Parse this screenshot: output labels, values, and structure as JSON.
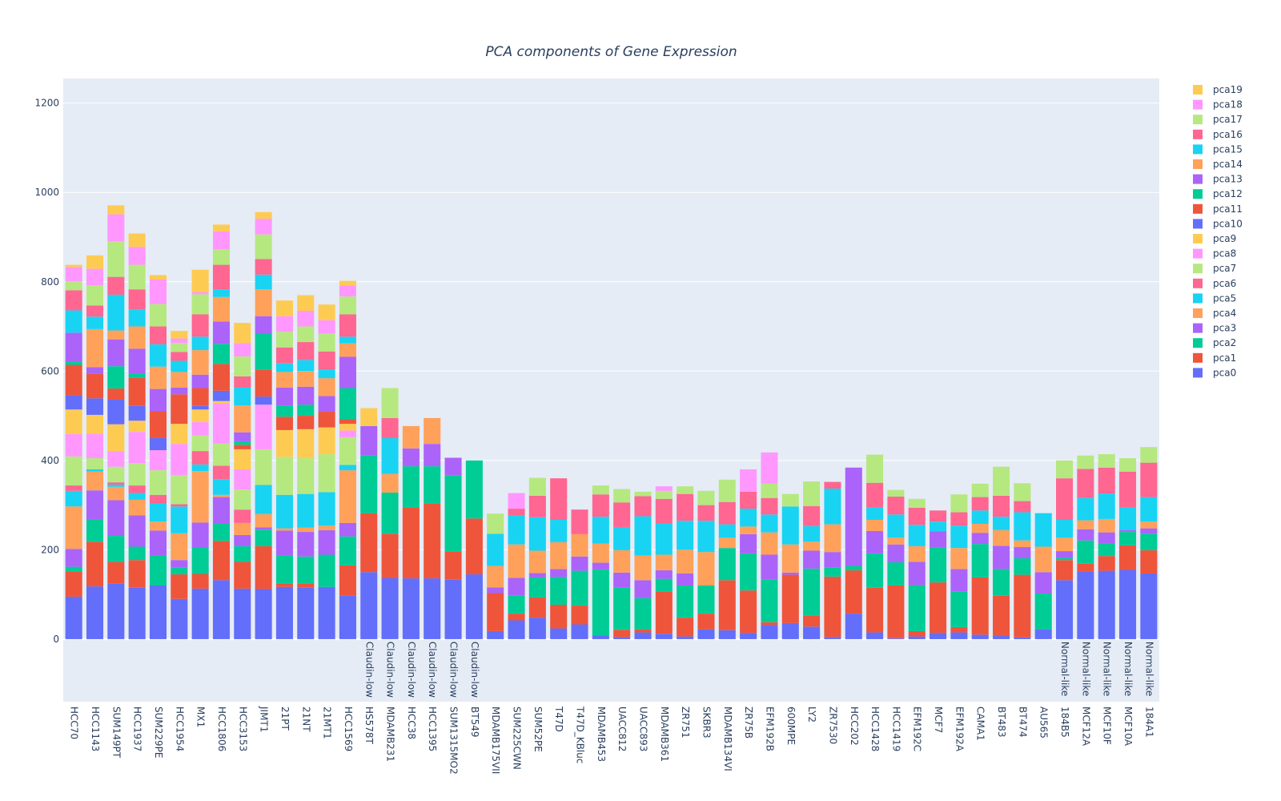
{
  "colors": [
    "#636efa",
    "#EF553B",
    "#00cc96",
    "#ab63fa",
    "#FFA15A",
    "#19d3f3",
    "#FF6692",
    "#B6E880",
    "#FF97FF",
    "#FECB52"
  ],
  "chart_data": {
    "type": "bar",
    "barmode": "stack",
    "title": "PCA components of Gene Expression",
    "xlabel": "",
    "ylabel": "",
    "ylim": [
      -140,
      1255
    ],
    "yticks": [
      0,
      200,
      400,
      600,
      800,
      1000,
      1200
    ],
    "grid": true,
    "legend_position": "right",
    "categories": [
      "HCC70",
      "HCC1143",
      "SUM149PT",
      "HCC1937",
      "SUM229PE",
      "HCC1954",
      "MX1",
      "HCC1806",
      "HCC3153",
      "JIMT1",
      "21PT",
      "21NT",
      "21MT1",
      "HCC1569",
      "HS578T",
      "MDAMB231",
      "HCC38",
      "HCC1395",
      "SUM1315MO2",
      "BT549",
      "MDAMB175VII",
      "SUM225CWN",
      "SUM52PE",
      "T47D",
      "T47D_KBluc",
      "MDAMB453",
      "UACC812",
      "UACC893",
      "MDAMB361",
      "ZR751",
      "SKBR3",
      "MDAMB134VI",
      "ZR75B",
      "EFM192B",
      "600MPE",
      "LY2",
      "ZR7530",
      "HCC202",
      "HCC1428",
      "HCC1419",
      "EFM192C",
      "MCF7",
      "EFM192A",
      "CAMA1",
      "BT483",
      "BT474",
      "AU565",
      "184B5",
      "MCF12A",
      "MCF10F",
      "MCF10A",
      "184A1"
    ],
    "subtype_labels": [
      "",
      "",
      "",
      "",
      "",
      "",
      "",
      "",
      "",
      "",
      "",
      "",
      "",
      "",
      "Claudin-low",
      "Claudin-low",
      "Claudin-low",
      "Claudin-low",
      "Claudin-low",
      "Claudin-low",
      "",
      "",
      "",
      "",
      "",
      "",
      "",
      "",
      "",
      "",
      "",
      "",
      "",
      "",
      "",
      "",
      "",
      "",
      "",
      "",
      "",
      "",
      "",
      "",
      "",
      "",
      "",
      "Normal-like",
      "Normal-like",
      "Normal-like",
      "Normal-like",
      "Normal-like"
    ],
    "legend_order": [
      "pca19",
      "pca18",
      "pca17",
      "pca16",
      "pca15",
      "pca14",
      "pca13",
      "pca12",
      "pca11",
      "pca10",
      "pca9",
      "pca8",
      "pca7",
      "pca6",
      "pca5",
      "pca4",
      "pca3",
      "pca2",
      "pca1",
      "pca0"
    ],
    "series": [
      {
        "name": "pca0",
        "values": [
          95,
          118,
          125,
          115,
          120,
          90,
          113,
          132,
          113,
          112,
          117,
          115,
          117,
          98,
          150,
          137,
          136,
          136,
          133,
          145,
          18,
          42,
          48,
          24,
          33,
          8,
          5,
          15,
          12,
          6,
          22,
          20,
          14,
          32,
          36,
          28,
          5,
          57,
          15,
          2,
          6,
          14,
          15,
          10,
          7,
          4,
          22,
          132,
          152,
          153,
          155,
          147
        ]
      },
      {
        "name": "pca1",
        "values": [
          57,
          100,
          48,
          62,
          0,
          55,
          33,
          88,
          60,
          96,
          8,
          10,
          0,
          67,
          132,
          99,
          158,
          167,
          63,
          125,
          85,
          15,
          45,
          53,
          42,
          0,
          16,
          7,
          95,
          42,
          35,
          112,
          95,
          6,
          108,
          25,
          135,
          97,
          100,
          118,
          12,
          113,
          12,
          128,
          90,
          140,
          0,
          45,
          17,
          33,
          55,
          52
        ]
      },
      {
        "name": "pca2",
        "values": [
          10,
          50,
          58,
          30,
          68,
          15,
          60,
          38,
          35,
          37,
          63,
          60,
          72,
          65,
          130,
          92,
          93,
          84,
          170,
          130,
          0,
          40,
          45,
          62,
          78,
          148,
          95,
          70,
          28,
          72,
          63,
          72,
          83,
          95,
          0,
          105,
          20,
          10,
          77,
          52,
          103,
          78,
          80,
          75,
          60,
          37,
          80,
          5,
          52,
          28,
          30,
          37
        ]
      },
      {
        "name": "pca3",
        "values": [
          40,
          65,
          80,
          70,
          55,
          17,
          55,
          60,
          25,
          5,
          55,
          55,
          55,
          30,
          65,
          0,
          40,
          50,
          40,
          0,
          13,
          40,
          10,
          18,
          32,
          15,
          33,
          40,
          19,
          27,
          0,
          0,
          43,
          56,
          5,
          40,
          35,
          220,
          50,
          40,
          52,
          36,
          50,
          25,
          52,
          25,
          48,
          15,
          25,
          25,
          5,
          12
        ]
      },
      {
        "name": "pca4",
        "values": [
          95,
          42,
          30,
          35,
          20,
          60,
          115,
          5,
          27,
          30,
          5,
          10,
          10,
          118,
          0,
          42,
          50,
          58,
          0,
          0,
          48,
          75,
          50,
          60,
          50,
          43,
          50,
          55,
          35,
          53,
          75,
          23,
          17,
          50,
          63,
          20,
          62,
          0,
          25,
          15,
          35,
          0,
          47,
          20,
          35,
          15,
          57,
          30,
          20,
          30,
          0,
          15
        ]
      },
      {
        "name": "pca5",
        "values": [
          35,
          5,
          5,
          15,
          40,
          60,
          15,
          35,
          0,
          65,
          75,
          75,
          75,
          12,
          0,
          80,
          0,
          0,
          0,
          0,
          72,
          65,
          75,
          50,
          0,
          60,
          52,
          88,
          70,
          65,
          70,
          30,
          40,
          40,
          85,
          35,
          80,
          0,
          28,
          52,
          48,
          22,
          50,
          30,
          30,
          63,
          75,
          40,
          50,
          57,
          50,
          55
        ]
      },
      {
        "name": "pca6",
        "values": [
          12,
          0,
          5,
          17,
          20,
          5,
          30,
          30,
          30,
          0,
          0,
          0,
          0,
          0,
          0,
          45,
          0,
          0,
          0,
          0,
          0,
          15,
          48,
          93,
          55,
          50,
          55,
          45,
          55,
          60,
          35,
          50,
          38,
          37,
          0,
          45,
          15,
          0,
          55,
          40,
          38,
          25,
          30,
          30,
          47,
          25,
          0,
          93,
          65,
          58,
          80,
          77
        ]
      },
      {
        "name": "pca7",
        "values": [
          65,
          25,
          35,
          50,
          55,
          65,
          35,
          50,
          45,
          80,
          85,
          80,
          85,
          62,
          0,
          67,
          0,
          0,
          0,
          0,
          45,
          0,
          40,
          0,
          0,
          20,
          30,
          10,
          18,
          17,
          32,
          50,
          0,
          32,
          28,
          55,
          0,
          0,
          63,
          15,
          20,
          0,
          40,
          30,
          65,
          40,
          0,
          40,
          30,
          30,
          30,
          35
        ]
      },
      {
        "name": "pca8",
        "values": [
          50,
          55,
          35,
          70,
          45,
          70,
          30,
          90,
          45,
          100,
          0,
          0,
          0,
          15,
          0,
          0,
          0,
          0,
          0,
          0,
          0,
          35,
          0,
          0,
          0,
          0,
          0,
          0,
          10,
          0,
          0,
          0,
          50,
          70,
          0,
          0,
          0,
          0,
          0,
          0,
          0,
          0,
          0,
          0,
          0,
          0,
          0,
          0,
          0,
          0,
          0,
          0
        ]
      },
      {
        "name": "pca9",
        "values": [
          55,
          42,
          60,
          25,
          0,
          45,
          28,
          5,
          45,
          0,
          60,
          65,
          60,
          15,
          40,
          0,
          0,
          0,
          0,
          0,
          0,
          0,
          0,
          0,
          0,
          0,
          0,
          0,
          0,
          0,
          0,
          0,
          0,
          0,
          0,
          0,
          0,
          0,
          0,
          0,
          0,
          0,
          0,
          0,
          0,
          0,
          0,
          0,
          0,
          0,
          0,
          0
        ]
      },
      {
        "name": "pca10",
        "values": [
          32,
          37,
          55,
          33,
          27,
          0,
          8,
          23,
          0,
          18,
          0,
          0,
          0,
          0,
          0,
          0,
          0,
          0,
          0,
          0,
          0,
          0,
          0,
          0,
          0,
          0,
          0,
          0,
          0,
          0,
          0,
          0,
          0,
          0,
          0,
          0,
          0,
          0,
          0,
          0,
          0,
          0,
          0,
          0,
          0,
          0,
          0,
          0,
          0,
          0,
          0,
          0
        ]
      },
      {
        "name": "pca11",
        "values": [
          68,
          55,
          25,
          63,
          60,
          66,
          40,
          60,
          10,
          60,
          30,
          30,
          35,
          10,
          0,
          0,
          0,
          0,
          0,
          0,
          0,
          0,
          0,
          0,
          0,
          0,
          0,
          0,
          0,
          0,
          0,
          0,
          0,
          0,
          0,
          0,
          0,
          0,
          0,
          0,
          0,
          0,
          0,
          0,
          0,
          0,
          0,
          0,
          0,
          0,
          0,
          0
        ]
      },
      {
        "name": "pca12",
        "values": [
          7,
          0,
          50,
          10,
          0,
          0,
          0,
          45,
          8,
          80,
          25,
          25,
          0,
          70,
          0,
          0,
          0,
          0,
          0,
          0,
          0,
          0,
          0,
          0,
          0,
          0,
          0,
          0,
          0,
          0,
          0,
          0,
          0,
          0,
          0,
          0,
          0,
          0,
          0,
          0,
          0,
          0,
          0,
          0,
          0,
          0,
          0,
          0,
          0,
          0,
          0,
          0
        ]
      },
      {
        "name": "pca13",
        "values": [
          65,
          15,
          60,
          55,
          50,
          15,
          30,
          50,
          20,
          40,
          40,
          40,
          35,
          70,
          0,
          0,
          0,
          0,
          0,
          0,
          0,
          0,
          0,
          0,
          0,
          0,
          0,
          0,
          0,
          0,
          0,
          0,
          0,
          0,
          0,
          0,
          0,
          0,
          0,
          0,
          0,
          0,
          0,
          0,
          0,
          0,
          0,
          0,
          0,
          0,
          0,
          0
        ]
      },
      {
        "name": "pca14",
        "values": [
          0,
          85,
          20,
          50,
          50,
          35,
          55,
          55,
          60,
          60,
          35,
          35,
          40,
          30,
          0,
          0,
          0,
          0,
          0,
          0,
          0,
          0,
          0,
          0,
          0,
          0,
          0,
          0,
          0,
          0,
          0,
          0,
          0,
          0,
          0,
          0,
          0,
          0,
          0,
          0,
          0,
          0,
          0,
          0,
          0,
          0,
          0,
          0,
          0,
          0,
          0,
          0
        ]
      },
      {
        "name": "pca15",
        "values": [
          50,
          28,
          80,
          38,
          50,
          25,
          30,
          17,
          40,
          33,
          20,
          25,
          20,
          15,
          0,
          0,
          0,
          0,
          0,
          0,
          0,
          0,
          0,
          0,
          0,
          0,
          0,
          0,
          0,
          0,
          0,
          0,
          0,
          0,
          0,
          0,
          0,
          0,
          0,
          0,
          0,
          0,
          0,
          0,
          0,
          0,
          0,
          0,
          0,
          0,
          0,
          0
        ]
      },
      {
        "name": "pca16",
        "values": [
          45,
          25,
          40,
          45,
          40,
          20,
          50,
          55,
          25,
          35,
          35,
          40,
          40,
          50,
          0,
          0,
          0,
          0,
          0,
          0,
          0,
          0,
          0,
          0,
          0,
          0,
          0,
          0,
          0,
          0,
          0,
          0,
          0,
          0,
          0,
          0,
          0,
          0,
          0,
          0,
          0,
          0,
          0,
          0,
          0,
          0,
          0,
          0,
          0,
          0,
          0,
          0
        ]
      },
      {
        "name": "pca17",
        "values": [
          20,
          45,
          80,
          55,
          50,
          20,
          45,
          35,
          45,
          55,
          35,
          35,
          40,
          40,
          0,
          0,
          0,
          0,
          0,
          0,
          0,
          0,
          0,
          0,
          0,
          0,
          0,
          0,
          0,
          0,
          0,
          0,
          0,
          0,
          0,
          0,
          0,
          0,
          0,
          0,
          0,
          0,
          0,
          0,
          0,
          0,
          0,
          0,
          0,
          0,
          0,
          0
        ]
      },
      {
        "name": "pca18",
        "values": [
          32,
          37,
          60,
          40,
          55,
          10,
          5,
          40,
          30,
          35,
          35,
          35,
          30,
          25,
          0,
          0,
          0,
          0,
          0,
          0,
          0,
          0,
          0,
          0,
          0,
          0,
          0,
          0,
          0,
          0,
          0,
          0,
          0,
          0,
          0,
          0,
          0,
          0,
          0,
          0,
          0,
          0,
          0,
          0,
          0,
          0,
          0,
          0,
          0,
          0,
          0,
          0
        ]
      },
      {
        "name": "pca19",
        "values": [
          5,
          30,
          20,
          30,
          10,
          17,
          50,
          15,
          45,
          15,
          35,
          35,
          35,
          10,
          0,
          0,
          0,
          0,
          0,
          0,
          0,
          0,
          0,
          0,
          0,
          0,
          0,
          0,
          0,
          0,
          0,
          0,
          0,
          0,
          0,
          0,
          0,
          0,
          0,
          0,
          0,
          0,
          0,
          0,
          0,
          0,
          0,
          0,
          0,
          0,
          0,
          0
        ]
      }
    ]
  }
}
